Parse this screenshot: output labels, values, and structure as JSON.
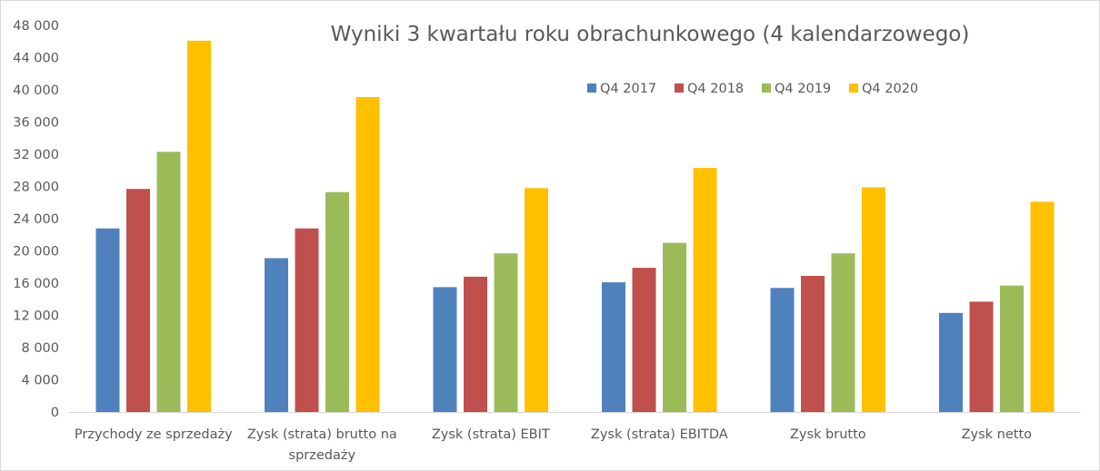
{
  "chart_data": {
    "type": "bar",
    "title": "Wyniki 3 kwartału roku obrachunkowego (4 kalendarzowego)",
    "xlabel": "",
    "ylabel": "",
    "ylim": [
      0,
      48000
    ],
    "yticks": [
      0,
      4000,
      8000,
      12000,
      16000,
      20000,
      24000,
      28000,
      32000,
      36000,
      40000,
      44000,
      48000
    ],
    "ytick_labels": [
      "0",
      "4 000",
      "8 000",
      "12 000",
      "16 000",
      "20 000",
      "24 000",
      "28 000",
      "32 000",
      "36 000",
      "40 000",
      "44 000",
      "48 000"
    ],
    "grid": false,
    "legend_position": "top-right",
    "categories": [
      [
        "Przychody ze sprzedaży"
      ],
      [
        "Zysk (strata) brutto na",
        "sprzedaży"
      ],
      [
        "Zysk (strata) EBIT"
      ],
      [
        "Zysk (strata) EBITDA"
      ],
      [
        "Zysk brutto"
      ],
      [
        "Zysk netto"
      ]
    ],
    "series": [
      {
        "name": "Q4 2017",
        "color": "#4f81bd",
        "values": [
          22800,
          19100,
          15500,
          16100,
          15400,
          12300
        ]
      },
      {
        "name": "Q4 2018",
        "color": "#c0504d",
        "values": [
          27700,
          22800,
          16800,
          17900,
          16900,
          13700
        ]
      },
      {
        "name": "Q4 2019",
        "color": "#9bbb59",
        "values": [
          32300,
          27300,
          19700,
          21000,
          19700,
          15700
        ]
      },
      {
        "name": "Q4 2020",
        "color": "#ffc000",
        "values": [
          46100,
          39100,
          27800,
          30300,
          27900,
          26100
        ]
      }
    ]
  }
}
